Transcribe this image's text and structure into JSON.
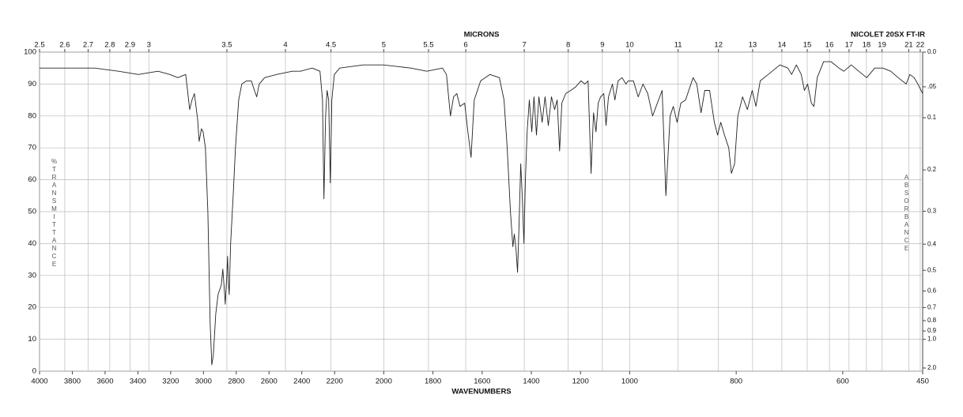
{
  "chart_data": {
    "type": "line",
    "title": "MICRONS",
    "subtitle": "NICOLET 20SX FT-IR",
    "x_label": "WAVENUMBERS",
    "y_label": "%TRANSMITTANCE",
    "y2_label": "ABSORBANCE",
    "xlim": [
      4000,
      450
    ],
    "xscale": {
      "breaks": [
        2200,
        1000
      ],
      "factors": [
        1,
        1.5,
        3.25
      ]
    },
    "xticks": [
      4000,
      3800,
      3600,
      3400,
      3200,
      3000,
      2800,
      2600,
      2400,
      2200,
      2000,
      1800,
      1600,
      1400,
      1200,
      1000,
      800,
      600,
      450
    ],
    "x2ticks": [
      2.5,
      2.6,
      2.7,
      2.8,
      2.9,
      3,
      3.5,
      4,
      4.5,
      5,
      5.5,
      6,
      7,
      8,
      9,
      10,
      11,
      12,
      13,
      14,
      15,
      16,
      17,
      18,
      19,
      21,
      22
    ],
    "x2scale": "microns",
    "ylim": [
      0,
      100
    ],
    "yticks": [
      0,
      10,
      20,
      30,
      40,
      50,
      60,
      70,
      80,
      90,
      100
    ],
    "y2scale": "absorbance",
    "y2ticks": [
      {
        "value": 0,
        "label": "0.0"
      },
      {
        "value": 0.05,
        "label": ".05"
      },
      0.1,
      0.2,
      0.3,
      0.4,
      0.5,
      0.6,
      0.7,
      0.8,
      0.9,
      {
        "value": 1,
        "label": "1.0"
      },
      {
        "value": 2,
        "label": "2.0"
      }
    ],
    "grid": true,
    "series": [
      {
        "color": "#222222",
        "x": [
          4000,
          3855,
          3663,
          3518,
          3398,
          3277,
          3205,
          3157,
          3108,
          3084,
          3070,
          3055,
          3036,
          3026,
          3012,
          3002,
          2988,
          2973,
          2959,
          2949,
          2940,
          2925,
          2911,
          2891,
          2882,
          2872,
          2867,
          2858,
          2853,
          2848,
          2843,
          2834,
          2819,
          2805,
          2785,
          2766,
          2737,
          2708,
          2689,
          2675,
          2660,
          2627,
          2554,
          2458,
          2409,
          2337,
          2289,
          2274,
          2265,
          2255,
          2246,
          2236,
          2226,
          2217,
          2202,
          2179,
          2083,
          2002,
          1890,
          1825,
          1761,
          1745,
          1729,
          1716,
          1703,
          1690,
          1671,
          1658,
          1645,
          1632,
          1606,
          1568,
          1530,
          1511,
          1498,
          1485,
          1475,
          1469,
          1462,
          1456,
          1450,
          1443,
          1437,
          1430,
          1424,
          1417,
          1408,
          1398,
          1389,
          1379,
          1369,
          1356,
          1344,
          1331,
          1318,
          1305,
          1295,
          1285,
          1276,
          1260,
          1240,
          1221,
          1198,
          1182,
          1169,
          1157,
          1147,
          1137,
          1128,
          1118,
          1105,
          1096,
          1086,
          1070,
          1060,
          1047,
          1031,
          1015,
          1006,
          993,
          984,
          975,
          966,
          957,
          948,
          939,
          932,
          924,
          918,
          911,
          904,
          895,
          881,
          874,
          866,
          859,
          850,
          841,
          835,
          829,
          822,
          814,
          809,
          803,
          797,
          788,
          779,
          770,
          763,
          755,
          740,
          718,
          703,
          696,
          687,
          678,
          672,
          666,
          659,
          654,
          648,
          636,
          622,
          607,
          598,
          584,
          570,
          555,
          540,
          525,
          510,
          496,
          481,
          474,
          466,
          459,
          450
        ],
        "values": [
          95,
          95,
          95,
          94,
          93,
          94,
          93,
          92,
          93,
          82,
          85,
          87,
          79,
          72,
          76,
          75,
          70,
          50,
          15,
          2,
          5,
          18,
          24,
          27,
          32,
          25,
          21,
          30,
          36,
          28,
          24,
          40,
          55,
          70,
          85,
          90,
          91,
          91,
          88,
          86,
          90,
          92,
          93,
          94,
          94,
          95,
          94,
          85,
          54,
          80,
          88,
          85,
          59,
          85,
          93,
          95,
          96,
          96,
          95,
          94,
          95,
          93,
          80,
          86,
          87,
          83,
          84,
          75,
          67,
          85,
          91,
          93,
          92,
          85,
          70,
          50,
          39,
          43,
          38,
          31,
          45,
          65,
          55,
          40,
          60,
          75,
          85,
          75,
          86,
          74,
          86,
          78,
          86,
          77,
          86,
          82,
          85,
          69,
          84,
          87,
          88,
          89,
          91,
          90,
          91,
          62,
          81,
          75,
          84,
          86,
          87,
          77,
          86,
          90,
          85,
          91,
          92,
          90,
          91,
          91,
          86,
          90,
          87,
          80,
          84,
          88,
          55,
          80,
          83,
          78,
          84,
          85,
          92,
          90,
          81,
          88,
          88,
          78,
          74,
          78,
          74,
          70,
          62,
          65,
          80,
          86,
          82,
          88,
          83,
          91,
          93,
          96,
          95,
          93,
          96,
          93,
          88,
          90,
          84,
          83,
          92,
          97,
          97,
          95,
          94,
          96,
          94,
          92,
          95,
          95,
          94,
          92,
          90,
          93,
          92,
          90,
          87
        ]
      }
    ]
  }
}
